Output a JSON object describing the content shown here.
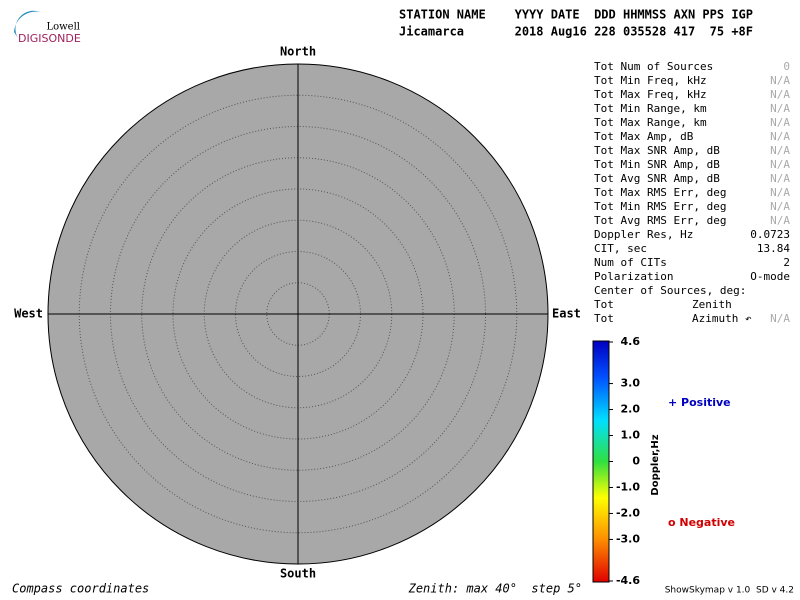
{
  "logo": {
    "top": "Lowell",
    "bottom": "DIGISONDE"
  },
  "header": {
    "labels": "STATION NAME    YYYY DATE  DDD HHMMSS AXN PPS IGP",
    "values": "Jicamarca       2018 Aug16 228 035528 417  75 +8F"
  },
  "compass": {
    "north": "North",
    "south": "South",
    "east": "East",
    "west": "West"
  },
  "stats": [
    {
      "label": "Tot Num of Sources",
      "value": "0"
    },
    {
      "label": "Tot Min Freq, kHz",
      "value": "N/A"
    },
    {
      "label": "Tot Max Freq, kHz",
      "value": "N/A"
    },
    {
      "label": "Tot Min Range, km",
      "value": "N/A"
    },
    {
      "label": "Tot Max Range, km",
      "value": "N/A"
    },
    {
      "label": "Tot Max Amp, dB",
      "value": "N/A"
    },
    {
      "label": "Tot Max SNR Amp, dB",
      "value": "N/A"
    },
    {
      "label": "Tot Min SNR Amp, dB",
      "value": "N/A"
    },
    {
      "label": "Tot Avg SNR Amp, dB",
      "value": "N/A"
    },
    {
      "label": "Tot Max RMS Err, deg",
      "value": "N/A"
    },
    {
      "label": "Tot Min RMS Err, deg",
      "value": "N/A"
    },
    {
      "label": "Tot Avg RMS Err, deg",
      "value": "N/A"
    },
    {
      "label": "Doppler Res, Hz",
      "value": "0.0723"
    },
    {
      "label": "CIT, sec",
      "value": "13.84"
    },
    {
      "label": "Num of CITs",
      "value": "2"
    },
    {
      "label": "Polarization",
      "value": "O-mode"
    },
    {
      "label": "Center of Sources, deg:"
    },
    {
      "label": "Tot",
      "sub": "Zenith"
    },
    {
      "label": "Tot",
      "sub": "Azimuth ↶",
      "value": "N/A"
    }
  ],
  "colorbar": {
    "title": "Doppler,Hz",
    "lim": [
      -4.6,
      4.6
    ],
    "ticks": [
      4.6,
      {
        "value": 3,
        "label": "3.0"
      },
      {
        "value": 2,
        "label": "2.0"
      },
      {
        "value": 1,
        "label": "1.0"
      },
      0,
      {
        "value": -1,
        "label": "-1.0"
      },
      {
        "value": -2,
        "label": "-2.0"
      },
      {
        "value": -3,
        "label": "-3.0"
      },
      -4.6
    ]
  },
  "legend": {
    "positive": "+ Positive",
    "negative": "o Negative"
  },
  "footer": {
    "left": "Compass coordinates",
    "middle": "Zenith: max 40°  step 5°",
    "right": "ShowSkymap v 1.0  SD v 4.2"
  }
}
